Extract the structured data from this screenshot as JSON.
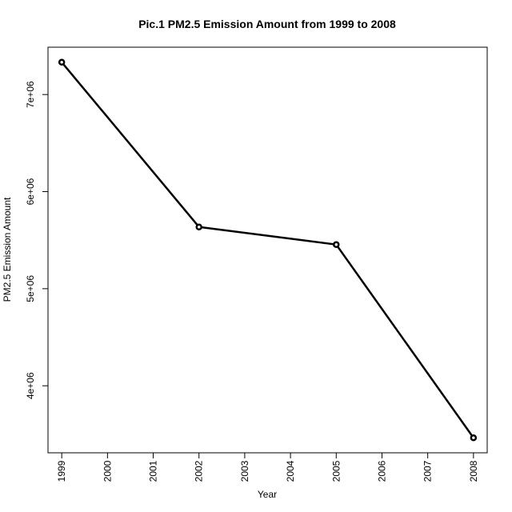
{
  "chart_data": {
    "type": "line",
    "title": "Pic.1 PM2.5 Emission Amount from 1999 to 2008",
    "xlabel": "Year",
    "ylabel": "PM2.5 Emission Amount",
    "x": [
      1999,
      2002,
      2005,
      2008
    ],
    "series": [
      {
        "values": [
          7332967,
          5635780,
          5454703,
          3464206
        ]
      }
    ],
    "xticks": [
      1999,
      2000,
      2001,
      2002,
      2003,
      2004,
      2005,
      2006,
      2007,
      2008
    ],
    "xtick_labels": [
      "1999",
      "2000",
      "2001",
      "2002",
      "2003",
      "2004",
      "2005",
      "2006",
      "2007",
      "2008"
    ],
    "yticks": [
      4000000,
      5000000,
      6000000,
      7000000
    ],
    "ytick_labels": [
      "4e+06",
      "5e+06",
      "6e+06",
      "7e+06"
    ],
    "xlim": [
      1998.7,
      2008.3
    ],
    "ylim": [
      3309575,
      7487598
    ],
    "grid": false,
    "legend": "none",
    "markers": "open-circle",
    "line_color": "#000000"
  }
}
